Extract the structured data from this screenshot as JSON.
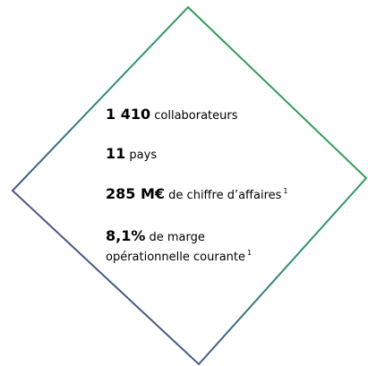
{
  "items": [
    {
      "value": "1 410",
      "text": "collaborateurs"
    },
    {
      "value": "11",
      "text": "pays"
    },
    {
      "value": "285 M€",
      "text": "de chiffre d’affaires",
      "note": "1"
    },
    {
      "value": "8,1%",
      "text": "de marge",
      "text2": "opérationnelle courante",
      "note": "1"
    }
  ]
}
